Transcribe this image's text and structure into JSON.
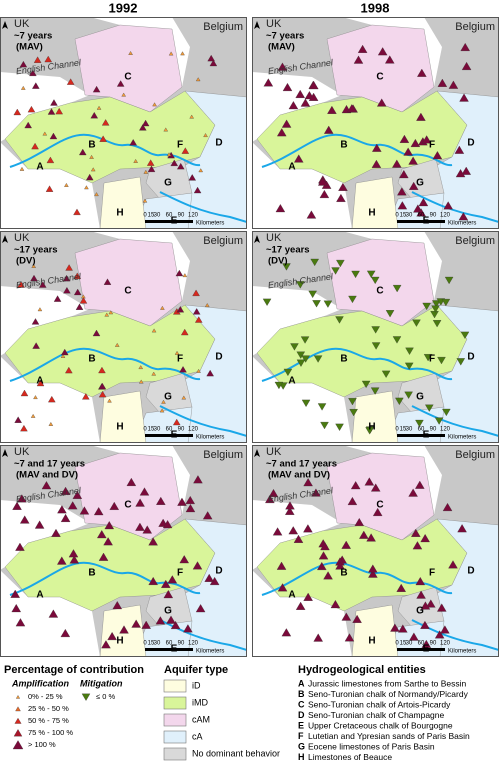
{
  "columns": [
    "1992",
    "1998"
  ],
  "rows": [
    {
      "label": [
        "~7 years",
        "(MAV)"
      ]
    },
    {
      "label": [
        "~17 years",
        "(DV)"
      ]
    },
    {
      "label": [
        "~7 and 17 years",
        "(MAV and DV)"
      ]
    }
  ],
  "map_labels": {
    "uk": "UK",
    "belgium": "Belgium",
    "channel": "English Channel",
    "regions": [
      "A",
      "B",
      "C",
      "D",
      "E",
      "F",
      "G",
      "H"
    ],
    "scale": [
      "0",
      "15",
      "30",
      "60",
      "90",
      "120"
    ],
    "scale_unit": "Kilometers"
  },
  "legend": {
    "contribution": {
      "title": "Percentage of contribution",
      "amplification": "Amplification",
      "mitigation": "Mitigation",
      "items": [
        "0% - 25 %",
        "25 % - 50 %",
        "50 % - 75 %",
        "75 % - 100 %",
        "> 100 %"
      ],
      "mitigation_item": "≤ 0 %"
    },
    "aquifer": {
      "title": "Aquifer type",
      "items": [
        "iD",
        "iMD",
        "cAM",
        "cA",
        "No dominant behavior"
      ]
    },
    "entities": {
      "title": "Hydrogeological entities",
      "items": [
        {
          "letter": "A",
          "text": "Jurassic limestones from Sarthe to Bessin"
        },
        {
          "letter": "B",
          "text": "Seno-Turonian chalk of Normandy/Picardy"
        },
        {
          "letter": "C",
          "text": "Seno-Turonian chalk of Artois-Picardy"
        },
        {
          "letter": "D",
          "text": "Seno-Turonian chalk of Champagne"
        },
        {
          "letter": "E",
          "text": "Upper Cretaceous chalk of Bourgogne"
        },
        {
          "letter": "F",
          "text": "Lutetian and Ypresian sands of Paris Basin"
        },
        {
          "letter": "G",
          "text": "Eocene limestones of Paris Basin"
        },
        {
          "letter": "H",
          "text": "Limestones of Beauce"
        }
      ]
    }
  }
}
